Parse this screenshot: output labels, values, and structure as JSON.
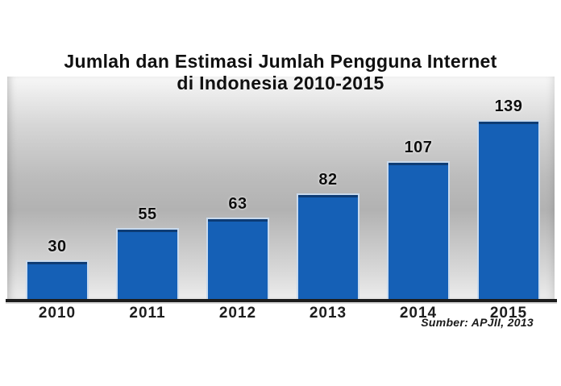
{
  "chart_data": {
    "type": "bar",
    "title_line1": "Jumlah dan Estimasi Jumlah Pengguna Internet",
    "title_line2": "di Indonesia 2010-2015",
    "categories": [
      "2010",
      "2011",
      "2012",
      "2013",
      "2014",
      "2015"
    ],
    "values": [
      30,
      55,
      63,
      82,
      107,
      139
    ],
    "source": "Sumber: APJII, 2013",
    "ylim": [
      0,
      170
    ],
    "grid": false,
    "legend": false,
    "bar_color": "#1560b6",
    "bar_edge_light": "#c9daed",
    "bar_edge_dark": "#0d3c75",
    "baseline_color": "#1c1c1c",
    "label_color": "#0d0d0d",
    "plot_wall_gray": "#b2b2b2"
  }
}
